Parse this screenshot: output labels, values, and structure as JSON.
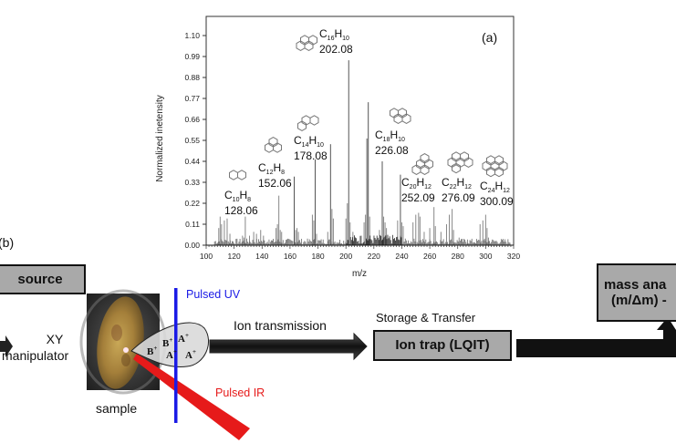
{
  "chart_data": {
    "type": "bar",
    "panel_label": "(a)",
    "title": "",
    "xlabel": "m/z",
    "ylabel": "Normalized inetensity",
    "xlim": [
      100,
      320
    ],
    "ylim": [
      0,
      1.1
    ],
    "x_ticks": [
      100,
      120,
      140,
      160,
      180,
      200,
      220,
      240,
      260,
      280,
      300,
      320
    ],
    "y_ticks": [
      "0.00",
      "0.11",
      "0.22",
      "0.33",
      "0.44",
      "0.55",
      "0.66",
      "0.77",
      "0.88",
      "0.99",
      "1.10"
    ],
    "grid": false,
    "peaks": [
      {
        "mz": 109,
        "intensity": 0.09
      },
      {
        "mz": 110,
        "intensity": 0.15
      },
      {
        "mz": 111,
        "intensity": 0.11
      },
      {
        "mz": 113,
        "intensity": 0.13
      },
      {
        "mz": 115,
        "intensity": 0.14
      },
      {
        "mz": 117,
        "intensity": 0.06
      },
      {
        "mz": 126,
        "intensity": 0.05
      },
      {
        "mz": 127,
        "intensity": 0.04
      },
      {
        "mz": 128,
        "intensity": 0.15
      },
      {
        "mz": 131,
        "intensity": 0.05
      },
      {
        "mz": 134,
        "intensity": 0.07
      },
      {
        "mz": 136,
        "intensity": 0.06
      },
      {
        "mz": 139,
        "intensity": 0.08
      },
      {
        "mz": 141,
        "intensity": 0.05
      },
      {
        "mz": 145,
        "intensity": 0.03
      },
      {
        "mz": 150,
        "intensity": 0.09
      },
      {
        "mz": 151,
        "intensity": 0.11
      },
      {
        "mz": 152,
        "intensity": 0.26
      },
      {
        "mz": 153,
        "intensity": 0.08
      },
      {
        "mz": 154,
        "intensity": 0.07
      },
      {
        "mz": 163,
        "intensity": 0.36
      },
      {
        "mz": 164,
        "intensity": 0.08
      },
      {
        "mz": 165,
        "intensity": 0.09
      },
      {
        "mz": 166,
        "intensity": 0.07
      },
      {
        "mz": 176,
        "intensity": 0.16
      },
      {
        "mz": 177,
        "intensity": 0.13
      },
      {
        "mz": 178,
        "intensity": 0.45
      },
      {
        "mz": 179,
        "intensity": 0.06
      },
      {
        "mz": 187,
        "intensity": 0.07
      },
      {
        "mz": 189,
        "intensity": 0.53
      },
      {
        "mz": 190,
        "intensity": 0.19
      },
      {
        "mz": 191,
        "intensity": 0.14
      },
      {
        "mz": 200,
        "intensity": 0.14
      },
      {
        "mz": 201,
        "intensity": 0.22
      },
      {
        "mz": 202,
        "intensity": 0.97
      },
      {
        "mz": 203,
        "intensity": 0.12
      },
      {
        "mz": 205,
        "intensity": 0.07
      },
      {
        "mz": 211,
        "intensity": 0.05
      },
      {
        "mz": 213,
        "intensity": 0.12
      },
      {
        "mz": 214,
        "intensity": 0.16
      },
      {
        "mz": 215,
        "intensity": 0.56
      },
      {
        "mz": 216,
        "intensity": 0.75
      },
      {
        "mz": 217,
        "intensity": 0.15
      },
      {
        "mz": 224,
        "intensity": 0.08
      },
      {
        "mz": 226,
        "intensity": 0.44
      },
      {
        "mz": 227,
        "intensity": 0.15
      },
      {
        "mz": 228,
        "intensity": 0.12
      },
      {
        "mz": 229,
        "intensity": 0.09
      },
      {
        "mz": 237,
        "intensity": 0.13
      },
      {
        "mz": 239,
        "intensity": 0.37
      },
      {
        "mz": 240,
        "intensity": 0.12
      },
      {
        "mz": 241,
        "intensity": 0.1
      },
      {
        "mz": 248,
        "intensity": 0.12
      },
      {
        "mz": 250,
        "intensity": 0.16
      },
      {
        "mz": 252,
        "intensity": 0.17
      },
      {
        "mz": 253,
        "intensity": 0.15
      },
      {
        "mz": 256,
        "intensity": 0.07
      },
      {
        "mz": 260,
        "intensity": 0.09
      },
      {
        "mz": 263,
        "intensity": 0.2
      },
      {
        "mz": 264,
        "intensity": 0.1
      },
      {
        "mz": 268,
        "intensity": 0.07
      },
      {
        "mz": 272,
        "intensity": 0.11
      },
      {
        "mz": 274,
        "intensity": 0.16
      },
      {
        "mz": 276,
        "intensity": 0.19
      },
      {
        "mz": 277,
        "intensity": 0.08
      },
      {
        "mz": 281,
        "intensity": 0.04
      },
      {
        "mz": 287,
        "intensity": 0.03
      },
      {
        "mz": 296,
        "intensity": 0.11
      },
      {
        "mz": 298,
        "intensity": 0.13
      },
      {
        "mz": 300,
        "intensity": 0.16
      },
      {
        "mz": 301,
        "intensity": 0.09
      },
      {
        "mz": 302,
        "intensity": 0.04
      }
    ],
    "annotations": [
      {
        "molecule": "naphthalene",
        "formula_c": "10",
        "formula_h": "8",
        "mass": "128.06",
        "mz": 128
      },
      {
        "molecule": "acenaphthylene",
        "formula_c": "12",
        "formula_h": "8",
        "mass": "152.06",
        "mz": 152
      },
      {
        "molecule": "phenanthrene",
        "formula_c": "14",
        "formula_h": "10",
        "mass": "178.08",
        "mz": 178
      },
      {
        "molecule": "pyrene",
        "formula_c": "16",
        "formula_h": "10",
        "mass": "202.08",
        "mz": 202
      },
      {
        "molecule": "benzofluoranthene",
        "formula_c": "18",
        "formula_h": "10",
        "mass": "226.08",
        "mz": 226
      },
      {
        "molecule": "benzopyrene",
        "formula_c": "20",
        "formula_h": "12",
        "mass": "252.09",
        "mz": 252
      },
      {
        "molecule": "benzoperylene",
        "formula_c": "22",
        "formula_h": "12",
        "mass": "276.09",
        "mz": 276
      },
      {
        "molecule": "coronene",
        "formula_c": "24",
        "formula_h": "12",
        "mass": "300.09",
        "mz": 300
      }
    ]
  },
  "diagram": {
    "panel_label": "(b)",
    "source_box": "source",
    "xy_manipulator": "XY\nmanipulator",
    "xy_line1": "XY",
    "xy_line2": "manipulator",
    "sample_label": "sample",
    "pulsed_uv": "Pulsed UV",
    "pulsed_ir": "Pulsed IR",
    "ion_transmission": "Ion transmission",
    "storage_transfer": "Storage & Transfer",
    "ion_trap_box": "Ion trap (LQIT)",
    "mass_analyzer_line1": "mass ana",
    "mass_analyzer_line2": "(m/Δm) -",
    "plume_ions": [
      "B+",
      "B+",
      "A+",
      "A+",
      "A+"
    ],
    "colors": {
      "uv": "#1a1ae6",
      "ir": "#e61a1a",
      "box_fill": "#a9a9a9",
      "arrow": "#111111"
    }
  }
}
